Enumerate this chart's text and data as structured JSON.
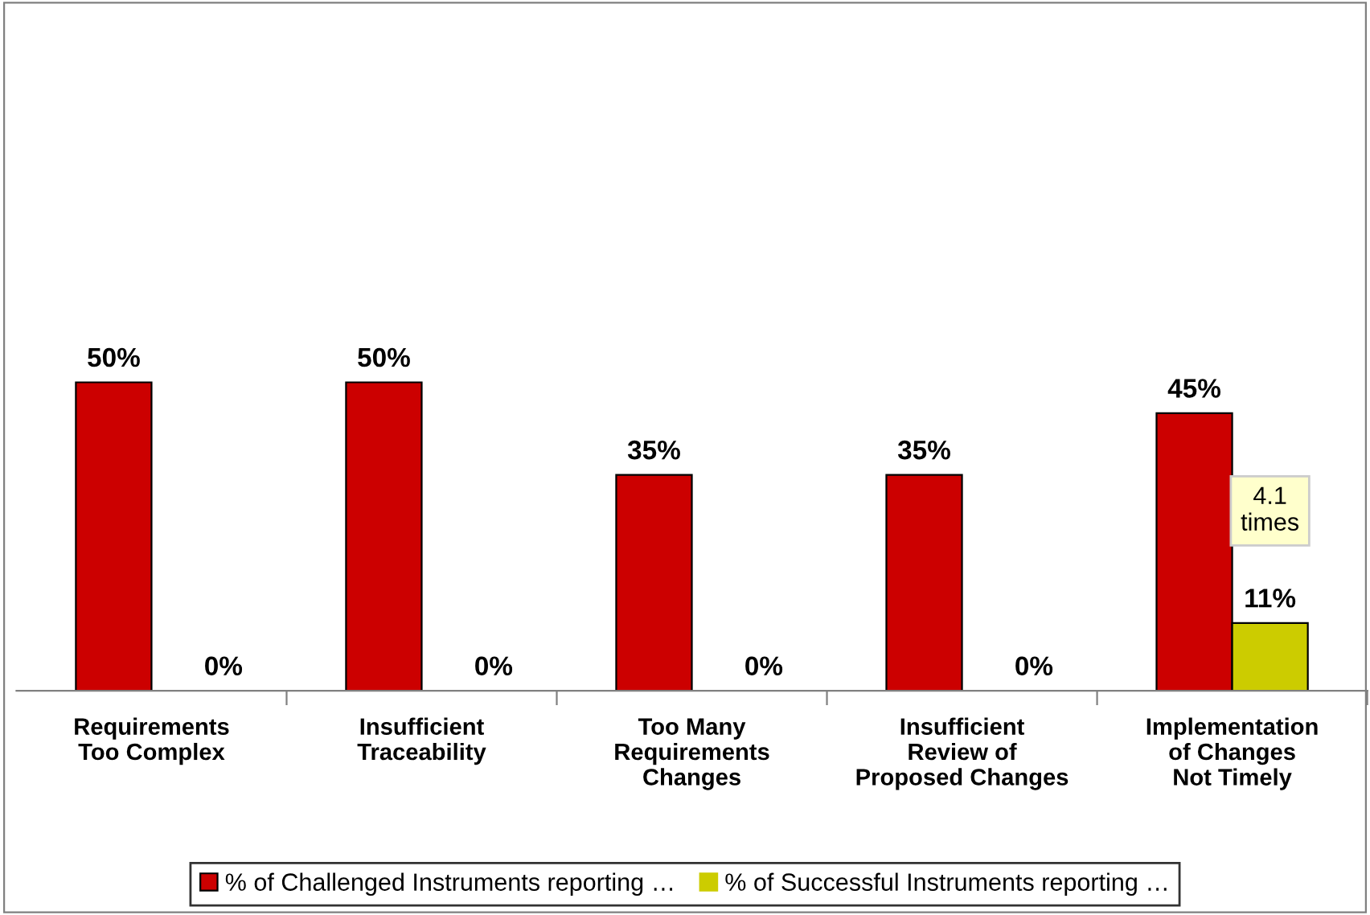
{
  "chart_data": {
    "type": "bar",
    "categories": [
      "Requirements\nToo Complex",
      "Insufficient\nTraceability",
      "Too Many\nRequirements\nChanges",
      "Insufficient\nReview of\nProposed Changes",
      "Implementation\nof Changes\nNot Timely"
    ],
    "series": [
      {
        "name": "% of Challenged Instruments reporting …",
        "color": "#cc0000",
        "values": [
          50,
          50,
          35,
          35,
          45
        ],
        "value_labels": [
          "50%",
          "50%",
          "35%",
          "35%",
          "45%"
        ]
      },
      {
        "name": "% of Successful Instruments reporting …",
        "color": "#cccc00",
        "values": [
          0,
          0,
          0,
          0,
          11
        ],
        "value_labels": [
          "0%",
          "0%",
          "0%",
          "0%",
          "11%"
        ]
      }
    ],
    "annotations": [
      "4.1\ntimes"
    ],
    "legend": "bottom",
    "grid": false
  }
}
